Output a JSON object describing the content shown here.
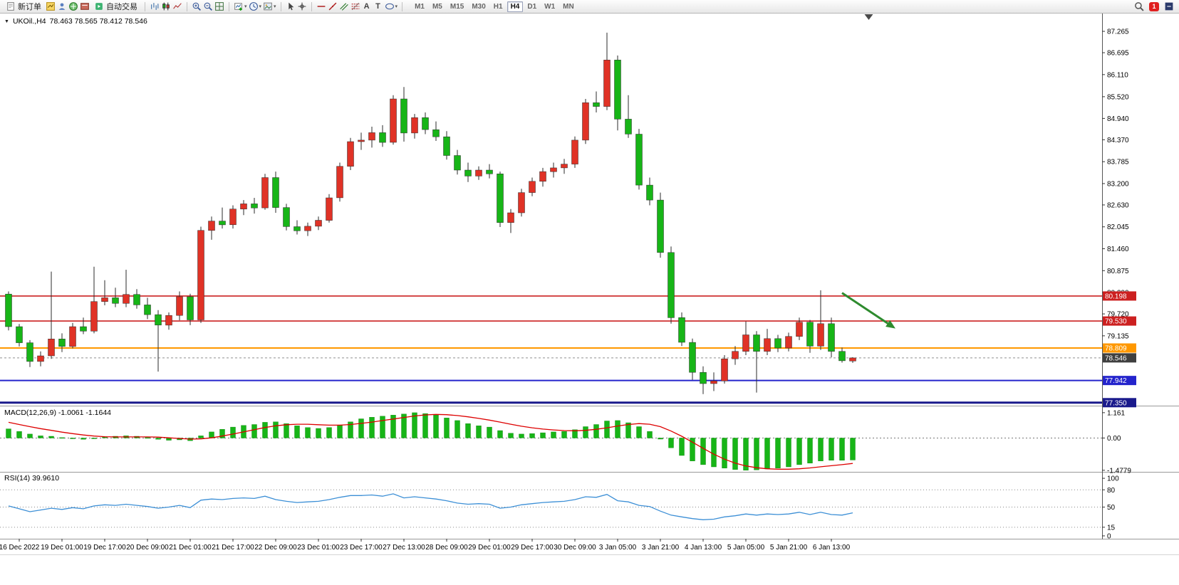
{
  "toolbar": {
    "new_order": "新订单",
    "autotrade": "自动交易",
    "timeframes": [
      "M1",
      "M5",
      "M15",
      "M30",
      "H1",
      "H4",
      "D1",
      "W1",
      "MN"
    ],
    "active_timeframe": "H4",
    "badge_count": "1",
    "text_tool": "A",
    "label_tool": "T",
    "caret_small": "▾",
    "caret_down": "▼"
  },
  "chart_data": {
    "type": "candlestick",
    "symbol": "UKOil.,H4",
    "ohlc_text": "78.463 78.565 78.412 78.546",
    "y_range": [
      77.27,
      87.76
    ],
    "price_axis_ticks": [
      "87.265",
      "86.695",
      "86.110",
      "85.520",
      "84.940",
      "84.370",
      "83.785",
      "83.200",
      "82.630",
      "82.045",
      "81.460",
      "80.875",
      "80.290",
      "79.720",
      "79.135"
    ],
    "horizontal_lines": [
      {
        "price": 80.198,
        "label": "80.198",
        "color": "#cc2020",
        "width": 1.6
      },
      {
        "price": 79.53,
        "label": "79.530",
        "color": "#cc2020",
        "width": 1.6
      },
      {
        "price": 78.809,
        "label": "78.809",
        "color": "#ff9800",
        "width": 2
      },
      {
        "price": 77.942,
        "label": "77.942",
        "color": "#2424cc",
        "width": 2
      },
      {
        "price": 77.35,
        "label": "77.350",
        "color": "#1a1a8c",
        "width": 3
      }
    ],
    "bid_line": {
      "price": 78.546,
      "label": "78.546"
    },
    "arrow": {
      "from_index": 78,
      "from_price": 80.28,
      "to_index": 83,
      "to_price": 79.33,
      "color": "#2e8b2e"
    },
    "shift_marker_index": 80.5,
    "first_label_candle_index": 1,
    "candles_per_label": 4,
    "time_labels": [
      "16 Dec 2022",
      "19 Dec 01:00",
      "19 Dec 17:00",
      "20 Dec 09:00",
      "21 Dec 01:00",
      "21 Dec 17:00",
      "22 Dec 09:00",
      "23 Dec 01:00",
      "23 Dec 17:00",
      "27 Dec 13:00",
      "28 Dec 09:00",
      "29 Dec 01:00",
      "29 Dec 17:00",
      "30 Dec 09:00",
      "3 Jan 05:00",
      "3 Jan 21:00",
      "4 Jan 13:00",
      "5 Jan 05:00",
      "5 Jan 21:00",
      "6 Jan 13:00"
    ],
    "candles": [
      [
        80.25,
        80.32,
        79.28,
        79.38
      ],
      [
        79.38,
        79.45,
        78.85,
        78.95
      ],
      [
        78.95,
        79.02,
        78.3,
        78.45
      ],
      [
        78.45,
        78.72,
        78.32,
        78.6
      ],
      [
        78.6,
        80.85,
        78.52,
        79.05
      ],
      [
        79.05,
        79.2,
        78.7,
        78.85
      ],
      [
        78.85,
        79.48,
        78.8,
        79.38
      ],
      [
        79.38,
        79.62,
        79.18,
        79.26
      ],
      [
        79.26,
        80.98,
        79.2,
        80.05
      ],
      [
        80.05,
        80.62,
        79.95,
        80.15
      ],
      [
        80.15,
        80.42,
        79.9,
        80.0
      ],
      [
        80.0,
        80.9,
        79.9,
        80.24
      ],
      [
        80.24,
        80.38,
        79.86,
        79.96
      ],
      [
        79.96,
        80.15,
        79.58,
        79.7
      ],
      [
        79.7,
        79.82,
        78.18,
        79.42
      ],
      [
        79.42,
        79.76,
        79.3,
        79.68
      ],
      [
        79.68,
        80.32,
        79.55,
        80.18
      ],
      [
        80.18,
        80.26,
        79.42,
        79.56
      ],
      [
        79.56,
        82.05,
        79.48,
        81.95
      ],
      [
        81.95,
        82.32,
        81.7,
        82.2
      ],
      [
        82.2,
        82.56,
        82.0,
        82.1
      ],
      [
        82.1,
        82.62,
        82.0,
        82.52
      ],
      [
        82.52,
        82.76,
        82.36,
        82.66
      ],
      [
        82.66,
        82.82,
        82.4,
        82.55
      ],
      [
        82.55,
        83.46,
        82.5,
        83.36
      ],
      [
        83.36,
        83.52,
        82.42,
        82.56
      ],
      [
        82.56,
        82.66,
        81.95,
        82.05
      ],
      [
        82.05,
        82.22,
        81.84,
        81.94
      ],
      [
        81.94,
        82.16,
        81.8,
        82.06
      ],
      [
        82.06,
        82.32,
        81.96,
        82.22
      ],
      [
        82.22,
        82.92,
        82.16,
        82.82
      ],
      [
        82.82,
        83.76,
        82.72,
        83.66
      ],
      [
        83.66,
        84.42,
        83.56,
        84.32
      ],
      [
        84.32,
        84.56,
        84.1,
        84.36
      ],
      [
        84.36,
        84.72,
        84.16,
        84.56
      ],
      [
        84.56,
        84.76,
        84.18,
        84.3
      ],
      [
        84.3,
        85.56,
        84.24,
        85.46
      ],
      [
        85.46,
        85.78,
        84.32,
        84.55
      ],
      [
        84.55,
        85.06,
        84.4,
        84.96
      ],
      [
        84.96,
        85.1,
        84.52,
        84.64
      ],
      [
        84.64,
        84.86,
        84.34,
        84.45
      ],
      [
        84.45,
        84.6,
        83.84,
        83.95
      ],
      [
        83.95,
        84.1,
        83.44,
        83.56
      ],
      [
        83.56,
        83.76,
        83.24,
        83.4
      ],
      [
        83.4,
        83.66,
        83.3,
        83.56
      ],
      [
        83.56,
        83.72,
        83.34,
        83.46
      ],
      [
        83.46,
        83.52,
        82.04,
        82.16
      ],
      [
        82.16,
        82.52,
        81.88,
        82.42
      ],
      [
        82.42,
        83.06,
        82.32,
        82.96
      ],
      [
        82.96,
        83.36,
        82.86,
        83.26
      ],
      [
        83.26,
        83.62,
        83.12,
        83.52
      ],
      [
        83.52,
        83.76,
        83.36,
        83.62
      ],
      [
        83.62,
        83.86,
        83.46,
        83.72
      ],
      [
        83.72,
        84.46,
        83.62,
        84.36
      ],
      [
        84.36,
        85.46,
        84.26,
        85.36
      ],
      [
        85.36,
        85.66,
        85.1,
        85.26
      ],
      [
        85.26,
        87.23,
        85.16,
        86.5
      ],
      [
        86.5,
        86.62,
        84.62,
        84.92
      ],
      [
        84.92,
        85.56,
        84.42,
        84.52
      ],
      [
        84.52,
        84.66,
        83.04,
        83.16
      ],
      [
        83.16,
        83.36,
        82.62,
        82.76
      ],
      [
        82.76,
        82.96,
        81.22,
        81.36
      ],
      [
        81.36,
        81.52,
        79.46,
        79.62
      ],
      [
        79.62,
        79.76,
        78.86,
        78.96
      ],
      [
        78.96,
        79.06,
        77.96,
        78.16
      ],
      [
        78.16,
        78.32,
        77.58,
        77.86
      ],
      [
        77.86,
        78.16,
        77.66,
        77.93
      ],
      [
        77.93,
        78.62,
        77.86,
        78.52
      ],
      [
        78.52,
        78.86,
        78.36,
        78.72
      ],
      [
        78.72,
        79.52,
        78.62,
        79.16
      ],
      [
        79.16,
        79.26,
        77.62,
        78.72
      ],
      [
        78.72,
        79.32,
        78.62,
        79.06
      ],
      [
        79.06,
        79.16,
        78.7,
        78.81
      ],
      [
        78.81,
        79.22,
        78.72,
        79.12
      ],
      [
        79.12,
        79.62,
        79.02,
        79.5
      ],
      [
        79.5,
        79.56,
        78.68,
        78.86
      ],
      [
        78.86,
        80.35,
        78.76,
        79.46
      ],
      [
        79.46,
        79.62,
        78.56,
        78.72
      ],
      [
        78.72,
        78.82,
        78.42,
        78.47
      ],
      [
        78.463,
        78.565,
        78.412,
        78.546
      ]
    ],
    "macd": {
      "label": "MACD(12,26,9) -1.0061 -1.1644",
      "axis_ticks": [
        "1.161",
        "0.00",
        "-1.4779"
      ],
      "range": [
        -1.55,
        1.45
      ],
      "values": [
        0.42,
        0.3,
        0.18,
        0.1,
        0.08,
        0.02,
        -0.03,
        -0.06,
        -0.02,
        0.04,
        0.08,
        0.1,
        0.08,
        0.02,
        -0.06,
        -0.1,
        -0.08,
        -0.12,
        0.1,
        0.28,
        0.4,
        0.5,
        0.58,
        0.62,
        0.72,
        0.74,
        0.66,
        0.56,
        0.48,
        0.44,
        0.48,
        0.6,
        0.74,
        0.88,
        0.95,
        1.0,
        1.05,
        1.1,
        1.16,
        1.12,
        1.05,
        0.92,
        0.8,
        0.66,
        0.56,
        0.5,
        0.34,
        0.22,
        0.18,
        0.2,
        0.24,
        0.28,
        0.3,
        0.38,
        0.52,
        0.62,
        0.78,
        0.8,
        0.7,
        0.52,
        0.3,
        -0.05,
        -0.45,
        -0.8,
        -1.05,
        -1.22,
        -1.32,
        -1.38,
        -1.44,
        -1.478,
        -1.46,
        -1.42,
        -1.38,
        -1.32,
        -1.22,
        -1.15,
        -1.05,
        -1.02,
        -1.02,
        -1.006
      ],
      "signal": [
        0.72,
        0.62,
        0.52,
        0.43,
        0.35,
        0.27,
        0.2,
        0.14,
        0.09,
        0.06,
        0.05,
        0.05,
        0.05,
        0.05,
        0.04,
        0.01,
        -0.02,
        -0.05,
        -0.04,
        0.01,
        0.09,
        0.18,
        0.28,
        0.38,
        0.48,
        0.56,
        0.61,
        0.63,
        0.63,
        0.61,
        0.59,
        0.59,
        0.62,
        0.67,
        0.73,
        0.8,
        0.87,
        0.94,
        1.01,
        1.06,
        1.08,
        1.07,
        1.03,
        0.97,
        0.9,
        0.82,
        0.73,
        0.63,
        0.54,
        0.47,
        0.41,
        0.37,
        0.34,
        0.33,
        0.35,
        0.4,
        0.47,
        0.55,
        0.62,
        0.66,
        0.63,
        0.52,
        0.32,
        0.08,
        -0.19,
        -0.47,
        -0.74,
        -0.97,
        -1.15,
        -1.28,
        -1.36,
        -1.41,
        -1.43,
        -1.43,
        -1.41,
        -1.37,
        -1.32,
        -1.27,
        -1.22,
        -1.1644
      ]
    },
    "rsi": {
      "label": "RSI(14) 39.9610",
      "axis_ticks": [
        "100",
        "80",
        "50",
        "15",
        "0"
      ],
      "dashed_levels": [
        80,
        50,
        15
      ],
      "range": [
        -5,
        110
      ],
      "values": [
        52,
        47,
        42,
        45,
        48,
        46,
        49,
        47,
        52,
        54,
        53,
        55,
        53,
        51,
        48,
        50,
        53,
        49,
        62,
        64,
        63,
        65,
        66,
        65,
        69,
        63,
        60,
        58,
        59,
        60,
        63,
        67,
        70,
        70,
        71,
        69,
        73,
        66,
        68,
        66,
        64,
        61,
        57,
        55,
        56,
        55,
        48,
        50,
        54,
        56,
        58,
        59,
        60,
        63,
        68,
        67,
        72,
        61,
        59,
        53,
        51,
        43,
        36,
        33,
        30,
        28,
        29,
        33,
        35,
        38,
        36,
        38,
        37,
        38,
        41,
        37,
        41,
        37,
        36,
        39.96
      ]
    },
    "colors": {
      "bull": "#e03226",
      "bear": "#17b517",
      "outline": "#2b2b2b",
      "macd_hist": "#17b517",
      "macd_hist_edge": "#0c860c",
      "macd_signal": "#dd0000",
      "rsi": "#3c8fd6",
      "separator": "#9a9a9a",
      "bid_bg": "#3f3f3f",
      "arrow": "#2e8b2e"
    }
  }
}
